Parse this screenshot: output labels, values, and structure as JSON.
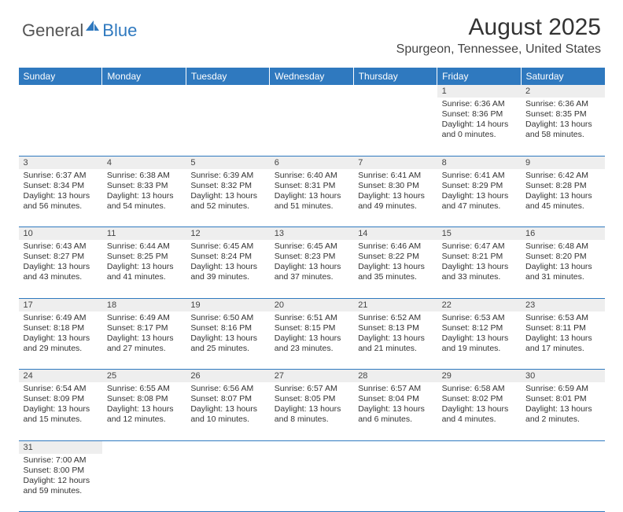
{
  "brand": {
    "text1": "General",
    "text2": "Blue"
  },
  "colors": {
    "accent": "#2f79bf",
    "header_text": "#ffffff",
    "day_bg": "#eeeeee",
    "text": "#333333",
    "logo_gray": "#555555",
    "background": "#ffffff"
  },
  "title": "August 2025",
  "location": "Spurgeon, Tennessee, United States",
  "weekdays": [
    "Sunday",
    "Monday",
    "Tuesday",
    "Wednesday",
    "Thursday",
    "Friday",
    "Saturday"
  ],
  "fonts": {
    "title_size_pt": 22,
    "location_size_pt": 12,
    "weekday_size_pt": 9,
    "daynum_size_pt": 8,
    "details_size_pt": 8
  },
  "grid": {
    "first_weekday_index": 5,
    "days_in_month": 31
  },
  "days": {
    "1": {
      "sunrise": "6:36 AM",
      "sunset": "8:36 PM",
      "daylight": "14 hours and 0 minutes."
    },
    "2": {
      "sunrise": "6:36 AM",
      "sunset": "8:35 PM",
      "daylight": "13 hours and 58 minutes."
    },
    "3": {
      "sunrise": "6:37 AM",
      "sunset": "8:34 PM",
      "daylight": "13 hours and 56 minutes."
    },
    "4": {
      "sunrise": "6:38 AM",
      "sunset": "8:33 PM",
      "daylight": "13 hours and 54 minutes."
    },
    "5": {
      "sunrise": "6:39 AM",
      "sunset": "8:32 PM",
      "daylight": "13 hours and 52 minutes."
    },
    "6": {
      "sunrise": "6:40 AM",
      "sunset": "8:31 PM",
      "daylight": "13 hours and 51 minutes."
    },
    "7": {
      "sunrise": "6:41 AM",
      "sunset": "8:30 PM",
      "daylight": "13 hours and 49 minutes."
    },
    "8": {
      "sunrise": "6:41 AM",
      "sunset": "8:29 PM",
      "daylight": "13 hours and 47 minutes."
    },
    "9": {
      "sunrise": "6:42 AM",
      "sunset": "8:28 PM",
      "daylight": "13 hours and 45 minutes."
    },
    "10": {
      "sunrise": "6:43 AM",
      "sunset": "8:27 PM",
      "daylight": "13 hours and 43 minutes."
    },
    "11": {
      "sunrise": "6:44 AM",
      "sunset": "8:25 PM",
      "daylight": "13 hours and 41 minutes."
    },
    "12": {
      "sunrise": "6:45 AM",
      "sunset": "8:24 PM",
      "daylight": "13 hours and 39 minutes."
    },
    "13": {
      "sunrise": "6:45 AM",
      "sunset": "8:23 PM",
      "daylight": "13 hours and 37 minutes."
    },
    "14": {
      "sunrise": "6:46 AM",
      "sunset": "8:22 PM",
      "daylight": "13 hours and 35 minutes."
    },
    "15": {
      "sunrise": "6:47 AM",
      "sunset": "8:21 PM",
      "daylight": "13 hours and 33 minutes."
    },
    "16": {
      "sunrise": "6:48 AM",
      "sunset": "8:20 PM",
      "daylight": "13 hours and 31 minutes."
    },
    "17": {
      "sunrise": "6:49 AM",
      "sunset": "8:18 PM",
      "daylight": "13 hours and 29 minutes."
    },
    "18": {
      "sunrise": "6:49 AM",
      "sunset": "8:17 PM",
      "daylight": "13 hours and 27 minutes."
    },
    "19": {
      "sunrise": "6:50 AM",
      "sunset": "8:16 PM",
      "daylight": "13 hours and 25 minutes."
    },
    "20": {
      "sunrise": "6:51 AM",
      "sunset": "8:15 PM",
      "daylight": "13 hours and 23 minutes."
    },
    "21": {
      "sunrise": "6:52 AM",
      "sunset": "8:13 PM",
      "daylight": "13 hours and 21 minutes."
    },
    "22": {
      "sunrise": "6:53 AM",
      "sunset": "8:12 PM",
      "daylight": "13 hours and 19 minutes."
    },
    "23": {
      "sunrise": "6:53 AM",
      "sunset": "8:11 PM",
      "daylight": "13 hours and 17 minutes."
    },
    "24": {
      "sunrise": "6:54 AM",
      "sunset": "8:09 PM",
      "daylight": "13 hours and 15 minutes."
    },
    "25": {
      "sunrise": "6:55 AM",
      "sunset": "8:08 PM",
      "daylight": "13 hours and 12 minutes."
    },
    "26": {
      "sunrise": "6:56 AM",
      "sunset": "8:07 PM",
      "daylight": "13 hours and 10 minutes."
    },
    "27": {
      "sunrise": "6:57 AM",
      "sunset": "8:05 PM",
      "daylight": "13 hours and 8 minutes."
    },
    "28": {
      "sunrise": "6:57 AM",
      "sunset": "8:04 PM",
      "daylight": "13 hours and 6 minutes."
    },
    "29": {
      "sunrise": "6:58 AM",
      "sunset": "8:02 PM",
      "daylight": "13 hours and 4 minutes."
    },
    "30": {
      "sunrise": "6:59 AM",
      "sunset": "8:01 PM",
      "daylight": "13 hours and 2 minutes."
    },
    "31": {
      "sunrise": "7:00 AM",
      "sunset": "8:00 PM",
      "daylight": "12 hours and 59 minutes."
    }
  },
  "labels": {
    "sunrise_prefix": "Sunrise: ",
    "sunset_prefix": "Sunset: ",
    "daylight_prefix": "Daylight: "
  }
}
